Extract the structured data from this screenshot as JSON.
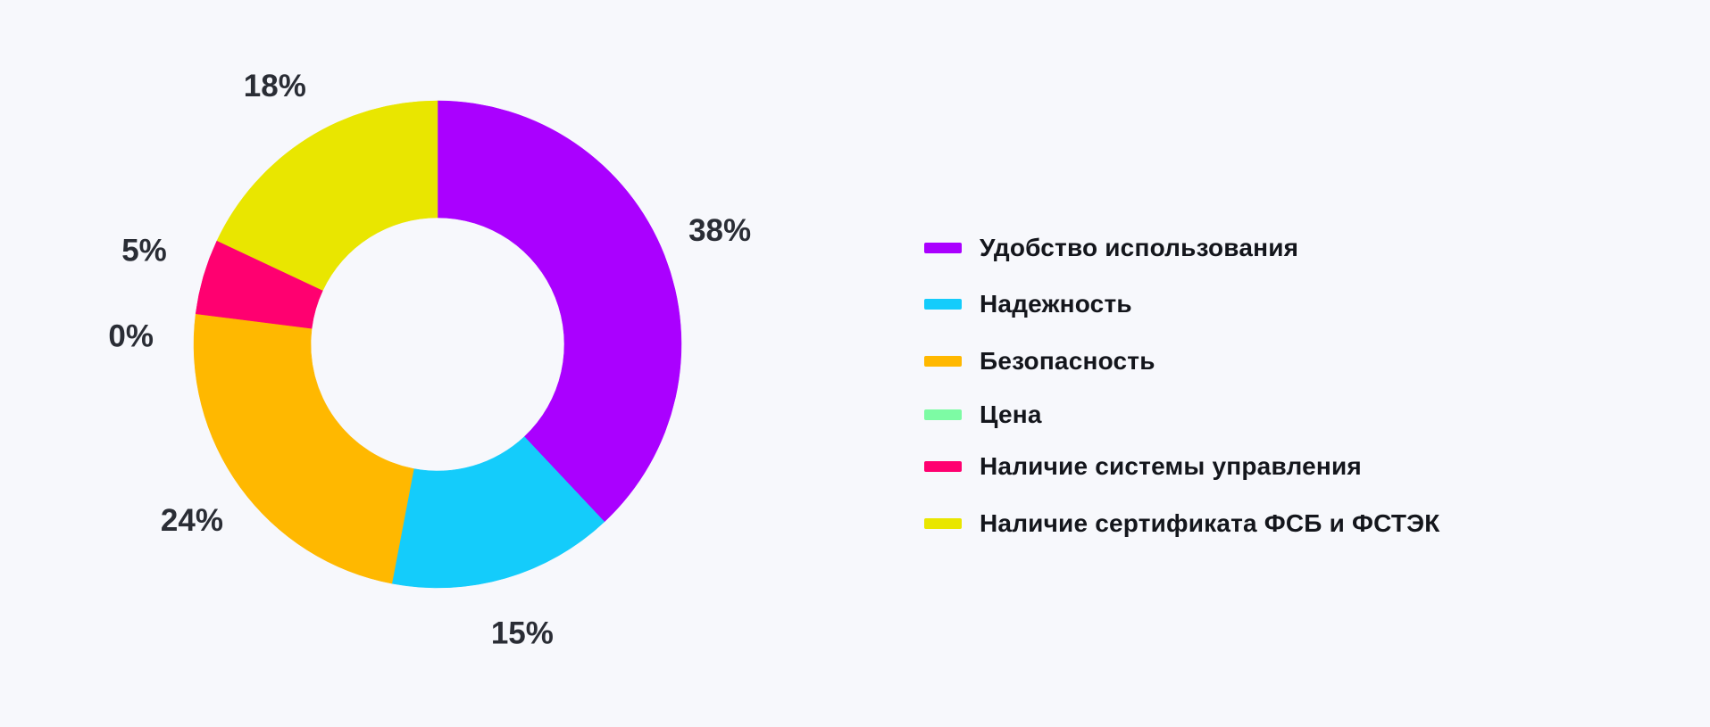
{
  "chart_data": {
    "type": "pie",
    "variant": "donut",
    "slices": [
      {
        "name": "Удобство использования",
        "value": 38,
        "label": "38%",
        "color": "#aa00ff"
      },
      {
        "name": "Надежность",
        "value": 15,
        "label": "15%",
        "color": "#14ccfb"
      },
      {
        "name": "Безопасность",
        "value": 24,
        "label": "24%",
        "color": "#ffb800"
      },
      {
        "name": "Цена",
        "value": 0,
        "label": "0%",
        "color": "#7dfba4"
      },
      {
        "name": "Наличие системы управления",
        "value": 5,
        "label": "5%",
        "color": "#ff0070"
      },
      {
        "name": "Наличие сертификата ФСБ и ФСТЭК",
        "value": 18,
        "label": "18%",
        "color": "#e9e600"
      }
    ],
    "legend_position": "right"
  }
}
